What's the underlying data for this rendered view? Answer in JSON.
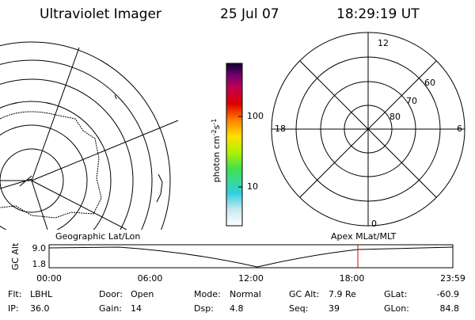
{
  "header": {
    "title": "Ultraviolet Imager",
    "date": "25 Jul 07",
    "time": "18:29:19 UT"
  },
  "colorbar": {
    "label": {
      "base": "photon cm",
      "sup1": "-2",
      "mid": "s",
      "sup2": "-1"
    },
    "ticks": [
      "100",
      "10"
    ]
  },
  "polar": {
    "mlt_labels": [
      "12",
      "18",
      "6",
      "0"
    ],
    "lat_labels": [
      "60",
      "70",
      "80"
    ]
  },
  "timeline": {
    "left_title": "Geographic Lat/Lon",
    "right_title": "Apex MLat/MLT",
    "axis_label": "GC Alt",
    "yticks": [
      "9.0",
      "1.8"
    ],
    "xticks": [
      "00:00",
      "06:00",
      "12:00",
      "18:00",
      "23:59"
    ]
  },
  "info": {
    "rows": [
      [
        {
          "label": "Flt:",
          "value": "LBHL"
        },
        {
          "label": "Door:",
          "value": "Open"
        },
        {
          "label": "Mode:",
          "value": "Normal"
        },
        {
          "label": "GC Alt:",
          "value": "7.9 Re"
        },
        {
          "label": "GLat:",
          "value": "-60.9"
        }
      ],
      [
        {
          "label": "IP:",
          "value": "36.0"
        },
        {
          "label": "Gain:",
          "value": "14"
        },
        {
          "label": "Dsp:",
          "value": "4.8"
        },
        {
          "label": "Seq:",
          "value": "39"
        },
        {
          "label": "GLon:",
          "value": "84.8"
        }
      ]
    ]
  }
}
